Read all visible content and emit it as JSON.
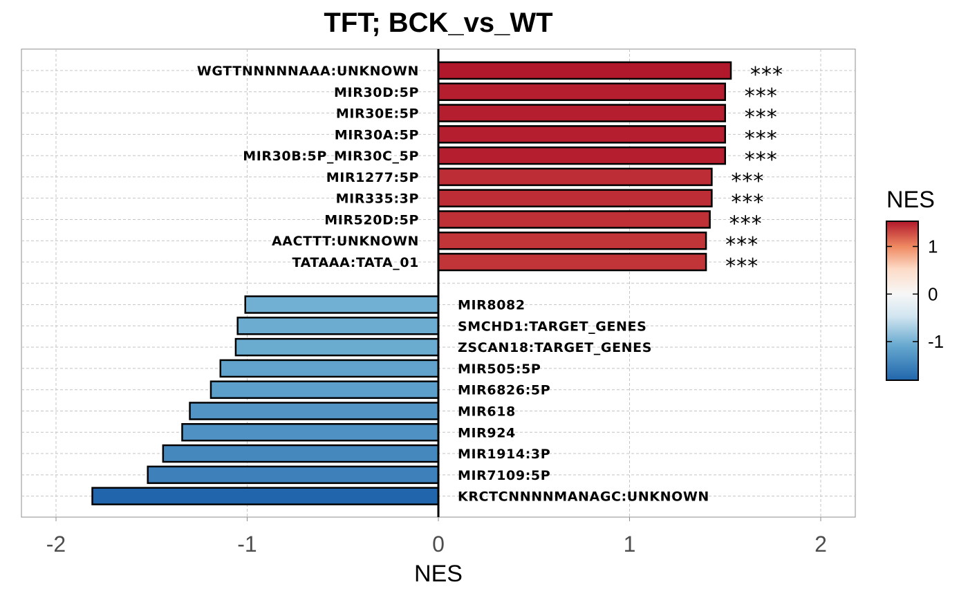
{
  "chart_data": {
    "type": "bar",
    "orientation": "horizontal",
    "title": "TFT; BCK_vs_WT",
    "xlabel": "NES",
    "ylabel": "",
    "xlim": [
      -2.18,
      2.18
    ],
    "xticks": [
      -2,
      -1,
      0,
      1,
      2
    ],
    "xtick_labels": [
      "-2",
      "-1",
      "0",
      "1",
      "2"
    ],
    "grid": true,
    "legend": {
      "title": "NES",
      "placement": "right",
      "type": "colorbar",
      "ticks": [
        -1,
        0,
        1
      ],
      "tick_labels": [
        "-1",
        "0",
        "1"
      ],
      "low_color": "#2166ac",
      "mid_color": "#f7f7f7",
      "high_color": "#b2182b",
      "range": [
        -1.81,
        1.53
      ]
    },
    "bars": [
      {
        "label": "WGTTNNNNNAAA:UNKNOWN",
        "value": 1.53,
        "significance": "***"
      },
      {
        "label": "MIR30D:5P",
        "value": 1.5,
        "significance": "***"
      },
      {
        "label": "MIR30E:5P",
        "value": 1.5,
        "significance": "***"
      },
      {
        "label": "MIR30A:5P",
        "value": 1.5,
        "significance": "***"
      },
      {
        "label": "MIR30B:5P_MIR30C_5P",
        "value": 1.5,
        "significance": "***"
      },
      {
        "label": "MIR1277:5P",
        "value": 1.43,
        "significance": "***"
      },
      {
        "label": "MIR335:3P",
        "value": 1.43,
        "significance": "***"
      },
      {
        "label": "MIR520D:5P",
        "value": 1.42,
        "significance": "***"
      },
      {
        "label": "AACTTT:UNKNOWN",
        "value": 1.4,
        "significance": "***"
      },
      {
        "label": "TATAAA:TATA_01",
        "value": 1.4,
        "significance": "***"
      },
      {
        "label": "MIR8082",
        "value": -1.01,
        "significance": ""
      },
      {
        "label": "SMCHD1:TARGET_GENES",
        "value": -1.05,
        "significance": ""
      },
      {
        "label": "ZSCAN18:TARGET_GENES",
        "value": -1.06,
        "significance": ""
      },
      {
        "label": "MIR505:5P",
        "value": -1.14,
        "significance": ""
      },
      {
        "label": "MIR6826:5P",
        "value": -1.19,
        "significance": ""
      },
      {
        "label": "MIR618",
        "value": -1.3,
        "significance": ""
      },
      {
        "label": "MIR924",
        "value": -1.34,
        "significance": ""
      },
      {
        "label": "MIR1914:3P",
        "value": -1.44,
        "significance": ""
      },
      {
        "label": "MIR7109:5P",
        "value": -1.52,
        "significance": ""
      },
      {
        "label": "KRCTCNNNNMANAGC:UNKNOWN",
        "value": -1.81,
        "significance": ""
      }
    ]
  }
}
